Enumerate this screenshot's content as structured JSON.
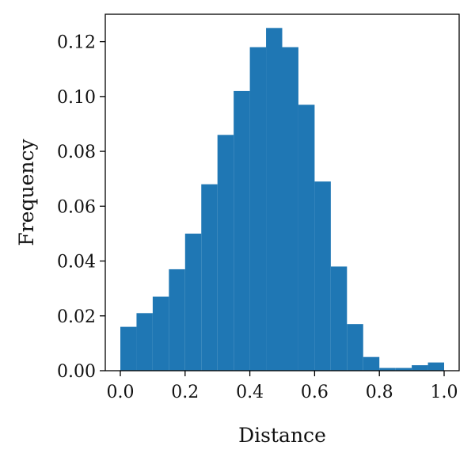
{
  "chart_data": {
    "type": "bar",
    "histogram": true,
    "xlabel": "Distance",
    "ylabel": "Frequency",
    "xlim": [
      0.0,
      1.0
    ],
    "ylim": [
      0.0,
      0.13
    ],
    "grid": false,
    "bar_color": "#1f77b4",
    "bin_width": 0.05,
    "bin_edges": [
      0.0,
      0.05,
      0.1,
      0.15,
      0.2,
      0.25,
      0.3,
      0.35,
      0.4,
      0.45,
      0.5,
      0.55,
      0.6,
      0.65,
      0.7,
      0.75,
      0.8,
      0.85,
      0.9,
      0.95,
      1.0
    ],
    "values": [
      0.016,
      0.021,
      0.027,
      0.037,
      0.05,
      0.068,
      0.086,
      0.102,
      0.118,
      0.125,
      0.118,
      0.097,
      0.069,
      0.038,
      0.017,
      0.005,
      0.001,
      0.001,
      0.002,
      0.003
    ],
    "x_ticks": [
      0.0,
      0.2,
      0.4,
      0.6,
      0.8,
      1.0
    ],
    "x_tick_labels": [
      "0.0",
      "0.2",
      "0.4",
      "0.6",
      "0.8",
      "1.0"
    ],
    "y_ticks": [
      0.0,
      0.02,
      0.04,
      0.06,
      0.08,
      0.1,
      0.12
    ],
    "y_tick_labels": [
      "0.00",
      "0.02",
      "0.04",
      "0.06",
      "0.08",
      "0.10",
      "0.12"
    ]
  }
}
